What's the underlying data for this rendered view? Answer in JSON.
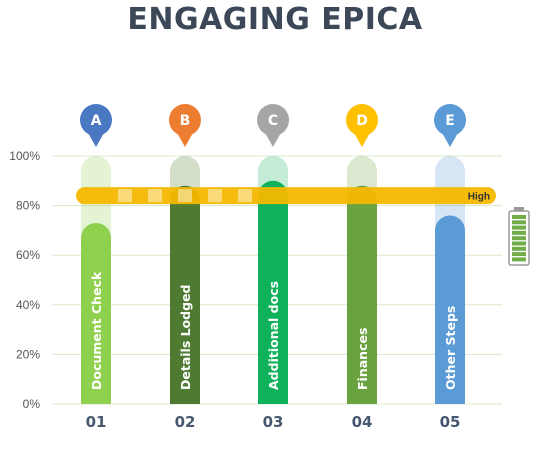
{
  "title": "ENGAGING EPICA",
  "chart_data": {
    "type": "bar",
    "categories": [
      "01",
      "02",
      "03",
      "04",
      "05"
    ],
    "markers": [
      "A",
      "B",
      "C",
      "D",
      "E"
    ],
    "bar_labels": [
      "Document Check",
      "Details Lodged",
      "Additional docs",
      "Finances",
      "Other Steps"
    ],
    "values": [
      73,
      88,
      90,
      88,
      76
    ],
    "max_values": [
      100,
      100,
      100,
      100,
      100
    ],
    "ylim": [
      0,
      100
    ],
    "yticks": [
      "0%",
      "20%",
      "40%",
      "60%",
      "80%",
      "100%"
    ],
    "threshold": {
      "label": "High",
      "value": 84
    },
    "grid": true,
    "bar_colors": [
      "#8fd14f",
      "#4e7a31",
      "#0fb15a",
      "#69a23e",
      "#5b9bd5"
    ],
    "marker_colors": [
      "#4a78c2",
      "#ed7d31",
      "#a5a5a5",
      "#ffc000",
      "#5b9bd5"
    ],
    "threshold_color": "#f5b800",
    "battery_color": "#70ad47"
  }
}
